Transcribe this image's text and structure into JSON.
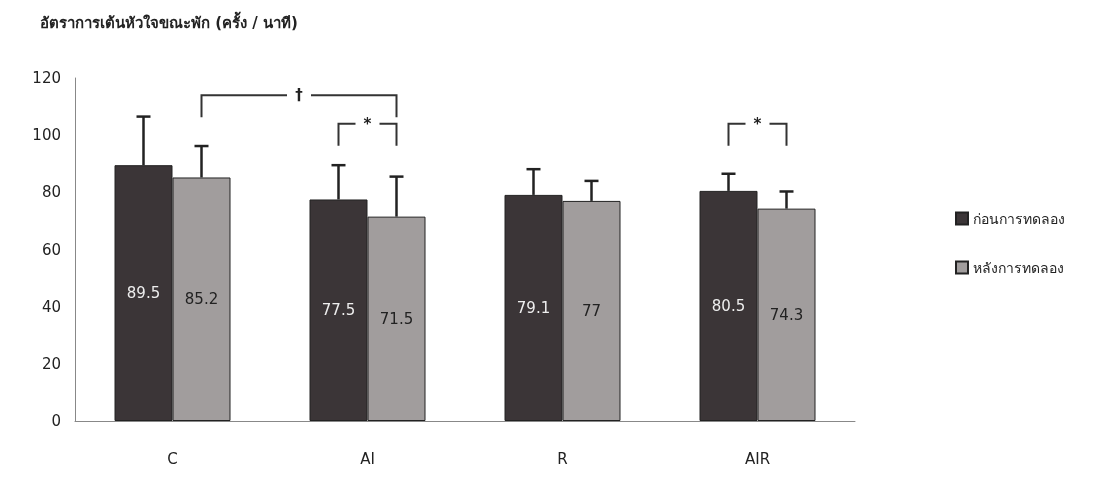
{
  "chart_data": {
    "type": "bar",
    "title": "อัตราการเต้นหัวใจขณะพัก (ครั้ง / นาที)",
    "categories": [
      "C",
      "AI",
      "R",
      "AIR"
    ],
    "series": [
      {
        "name": "ก่อนการทดลอง",
        "color": "#3b3537",
        "values": [
          89.5,
          77.5,
          79.1,
          80.5
        ],
        "errors": [
          17,
          12,
          9,
          6
        ]
      },
      {
        "name": "หลังการทดลอง",
        "color": "#a19d9d",
        "values": [
          85.2,
          71.5,
          77,
          74.3
        ],
        "errors": [
          11,
          14,
          7,
          6
        ]
      }
    ],
    "ylim": [
      0,
      120
    ],
    "yticks": [
      0,
      20,
      40,
      60,
      80,
      100,
      120
    ],
    "grid": false,
    "legend": "right",
    "data_labels": true,
    "annotations": [
      "†",
      "*",
      "*"
    ]
  }
}
